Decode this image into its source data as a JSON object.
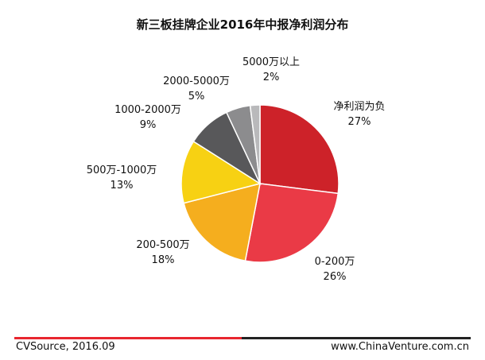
{
  "chart_data": {
    "type": "pie",
    "title": "新三板挂牌企业2016年中报净利润分布",
    "slices": [
      {
        "label": "净利润为负",
        "value": 27,
        "value_label": "27%",
        "color": "#cd2229"
      },
      {
        "label": "0-200万",
        "value": 26,
        "value_label": "26%",
        "color": "#ea3a46"
      },
      {
        "label": "200-500万",
        "value": 18,
        "value_label": "18%",
        "color": "#f5ae1e"
      },
      {
        "label": "500万-1000万",
        "value": 13,
        "value_label": "13%",
        "color": "#f7d113"
      },
      {
        "label": "1000-2000万",
        "value": 9,
        "value_label": "9%",
        "color": "#58585a"
      },
      {
        "label": "2000-5000万",
        "value": 5,
        "value_label": "5%",
        "color": "#8c8c8e"
      },
      {
        "label": "5000万以上",
        "value": 2,
        "value_label": "2%",
        "color": "#b9b9bb"
      }
    ]
  },
  "footer": {
    "source": "CVSource, 2016.09",
    "website": "www.ChinaVenture.com.cn"
  }
}
